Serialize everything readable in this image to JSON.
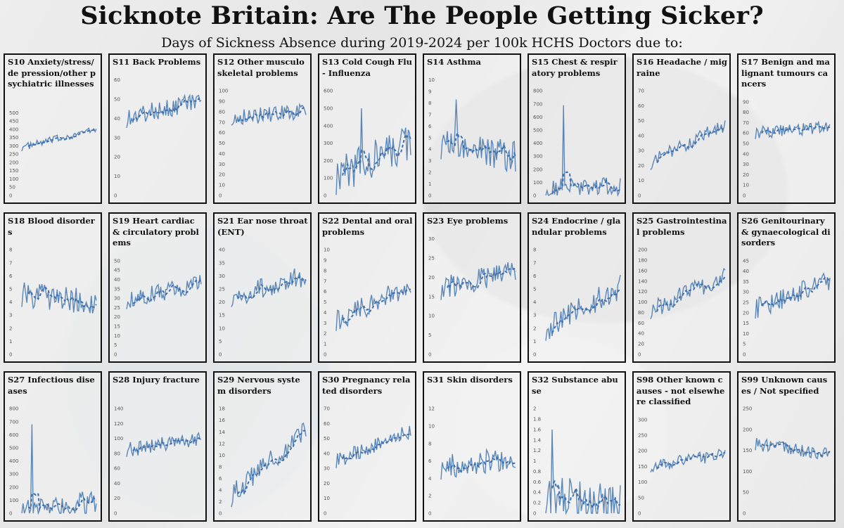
{
  "title": "Sicknote Britain: Are The People Getting Sicker?",
  "subtitle": "Days of Sickness Absence during 2019-2024 per 100k HCHS Doctors due to:",
  "colors": {
    "line": "#5a87b8",
    "trend": "#3d6fb0",
    "border": "#111111"
  },
  "chart_data": [
    {
      "type": "line",
      "id": "S10",
      "title": "S10 Anxiety/stress/de pression/other psychiatric illnesses",
      "ylim": [
        0,
        500
      ],
      "ticks": [
        0,
        50,
        100,
        150,
        200,
        250,
        300,
        350,
        400,
        450,
        500
      ],
      "start": 290,
      "end": 400,
      "noise": 22,
      "spike": null
    },
    {
      "type": "line",
      "id": "S11",
      "title": "S11 Back Problems",
      "ylim": [
        0,
        60
      ],
      "ticks": [
        0,
        10,
        20,
        30,
        40,
        50,
        60
      ],
      "start": 40,
      "end": 50,
      "noise": 5,
      "spike": null
    },
    {
      "type": "line",
      "id": "S12",
      "title": "S12 Other musculoskeletal problems",
      "ylim": [
        0,
        100
      ],
      "ticks": [
        0,
        10,
        20,
        30,
        40,
        50,
        60,
        70,
        80,
        90,
        100
      ],
      "start": 75,
      "end": 80,
      "noise": 8,
      "spike": null
    },
    {
      "type": "line",
      "id": "S13",
      "title": "S13 Cold Cough Flu - Influenza",
      "ylim": [
        0,
        600
      ],
      "ticks": [
        0,
        100,
        200,
        300,
        400,
        500,
        600
      ],
      "start": 110,
      "end": 300,
      "noise": 110,
      "spike": [
        20,
        500
      ]
    },
    {
      "type": "line",
      "id": "S14",
      "title": "S14 Asthma",
      "ylim": [
        0,
        10
      ],
      "ticks": [
        0,
        1,
        2,
        3,
        4,
        5,
        6,
        7,
        8,
        9,
        10
      ],
      "start": 4.5,
      "end": 3.3,
      "noise": 1.4,
      "spike": [
        12,
        8.3
      ]
    },
    {
      "type": "line",
      "id": "S15",
      "title": "S15 Chest & respiratory problems",
      "ylim": [
        0,
        800
      ],
      "ticks": [
        0,
        100,
        200,
        300,
        400,
        500,
        600,
        700,
        800
      ],
      "start": 60,
      "end": 70,
      "noise": 70,
      "spike": [
        14,
        690
      ]
    },
    {
      "type": "line",
      "id": "S16",
      "title": "S16 Headache / migraine",
      "ylim": [
        0,
        70
      ],
      "ticks": [
        0,
        10,
        20,
        30,
        40,
        50,
        60,
        70
      ],
      "start": 22,
      "end": 47,
      "noise": 5,
      "spike": null
    },
    {
      "type": "line",
      "id": "S17",
      "title": "S17 Benign and malignant tumours cancers",
      "ylim": [
        0,
        90
      ],
      "ticks": [
        0,
        10,
        20,
        30,
        40,
        50,
        60,
        70,
        80,
        90
      ],
      "start": 60,
      "end": 66,
      "noise": 6,
      "spike": null
    },
    {
      "type": "line",
      "id": "S18",
      "title": "S18 Blood disorders",
      "ylim": [
        0,
        8
      ],
      "ticks": [
        0,
        1,
        2,
        3,
        4,
        5,
        6,
        7,
        8
      ],
      "start": 4.6,
      "end": 4,
      "noise": 1,
      "spike": null
    },
    {
      "type": "line",
      "id": "S19",
      "title": "S19 Heart cardiac & circulatory problems",
      "ylim": [
        0,
        50
      ],
      "ticks": [
        0,
        5,
        10,
        15,
        20,
        25,
        30,
        35,
        40,
        45,
        50
      ],
      "start": 29,
      "end": 38,
      "noise": 5,
      "spike": null
    },
    {
      "type": "line",
      "id": "S21",
      "title": "S21 Ear nose throat (ENT)",
      "ylim": [
        0,
        40
      ],
      "ticks": [
        0,
        5,
        10,
        15,
        20,
        25,
        30,
        35,
        40
      ],
      "start": 22,
      "end": 30,
      "noise": 4,
      "spike": null
    },
    {
      "type": "line",
      "id": "S22",
      "title": "S22 Dental and oral problems",
      "ylim": [
        0,
        10
      ],
      "ticks": [
        0,
        1,
        2,
        3,
        4,
        5,
        6,
        7,
        8,
        9,
        10
      ],
      "start": 3.3,
      "end": 6.6,
      "noise": 1.1,
      "spike": null
    },
    {
      "type": "line",
      "id": "S23",
      "title": "S23 Eye problems",
      "ylim": [
        0,
        30
      ],
      "ticks": [
        0,
        5,
        10,
        15,
        20,
        25,
        30
      ],
      "start": 17,
      "end": 22,
      "noise": 3,
      "spike": null
    },
    {
      "type": "line",
      "id": "S24",
      "title": "S24 Endocrine / glandular problems",
      "ylim": [
        0,
        8
      ],
      "ticks": [
        0,
        1,
        2,
        3,
        4,
        5,
        6,
        7,
        8
      ],
      "start": 2,
      "end": 5.2,
      "noise": 1,
      "spike": null
    },
    {
      "type": "line",
      "id": "S25",
      "title": "S25 Gastrointestinal problems",
      "ylim": [
        0,
        200
      ],
      "ticks": [
        0,
        20,
        40,
        60,
        80,
        100,
        120,
        140,
        160,
        180,
        200
      ],
      "start": 85,
      "end": 150,
      "noise": 18,
      "spike": null
    },
    {
      "type": "line",
      "id": "S26",
      "title": "S26 Genitourinary & gynaecological disorders",
      "ylim": [
        0,
        45
      ],
      "ticks": [
        0,
        5,
        10,
        15,
        20,
        25,
        30,
        35,
        40,
        45
      ],
      "start": 22,
      "end": 35,
      "noise": 5,
      "spike": null
    },
    {
      "type": "line",
      "id": "S27",
      "title": "S27 Infectious diseases",
      "ylim": [
        0,
        800
      ],
      "ticks": [
        0,
        100,
        200,
        300,
        400,
        500,
        600,
        700,
        800
      ],
      "start": 30,
      "end": 60,
      "noise": 120,
      "spike": [
        8,
        680
      ]
    },
    {
      "type": "line",
      "id": "S28",
      "title": "S28 Injury fracture",
      "ylim": [
        0,
        140
      ],
      "ticks": [
        0,
        20,
        40,
        60,
        80,
        100,
        120,
        140
      ],
      "start": 85,
      "end": 100,
      "noise": 10,
      "spike": null
    },
    {
      "type": "line",
      "id": "S29",
      "title": "S29 Nervous system disorders",
      "ylim": [
        0,
        18
      ],
      "ticks": [
        0,
        2,
        4,
        6,
        8,
        10,
        12,
        14,
        16,
        18
      ],
      "start": 3,
      "end": 14,
      "noise": 2,
      "spike": null
    },
    {
      "type": "line",
      "id": "S30",
      "title": "S30 Pregnancy related disorders",
      "ylim": [
        0,
        70
      ],
      "ticks": [
        0,
        10,
        20,
        30,
        40,
        50,
        60,
        70
      ],
      "start": 35,
      "end": 55,
      "noise": 5,
      "spike": null
    },
    {
      "type": "line",
      "id": "S31",
      "title": "S31 Skin disorders",
      "ylim": [
        0,
        12
      ],
      "ticks": [
        0,
        2,
        4,
        6,
        8,
        10,
        12
      ],
      "start": 5.2,
      "end": 6.5,
      "noise": 1.4,
      "spike": null
    },
    {
      "type": "line",
      "id": "S32",
      "title": "S32 Substance abuse",
      "ylim": [
        0,
        2
      ],
      "ticks": [
        0,
        0.2,
        0.4,
        0.6,
        0.8,
        1,
        1.2,
        1.4,
        1.6,
        1.8,
        2
      ],
      "start": 0.2,
      "end": 0.1,
      "noise": 0.5,
      "spike": [
        5,
        1.6
      ]
    },
    {
      "type": "line",
      "id": "S98",
      "title": "S98 Other known causes - not elsewhere classified",
      "ylim": [
        0,
        300
      ],
      "ticks": [
        0,
        50,
        100,
        150,
        200,
        250,
        300
      ],
      "start": 150,
      "end": 190,
      "noise": 20,
      "spike": null
    },
    {
      "type": "line",
      "id": "S99",
      "title": "S99 Unknown causes / Not specified",
      "ylim": [
        0,
        250
      ],
      "ticks": [
        0,
        50,
        100,
        150,
        200,
        250
      ],
      "start": 165,
      "end": 140,
      "noise": 15,
      "spike": null
    }
  ]
}
